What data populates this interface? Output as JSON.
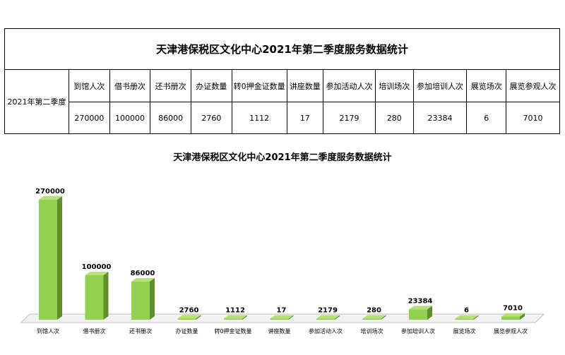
{
  "table": {
    "title": "天津港保税区文化中心2021年第二季度服务数据统计",
    "row_label": "2021年第二季度",
    "headers": [
      "到馆人次",
      "借书册次",
      "还书册次",
      "办证数量",
      "转0押金证数量",
      "讲座数量",
      "参加活动人次",
      "培训场次",
      "参加培训人次",
      "展览场次",
      "展览参观人次"
    ],
    "values": [
      "270000",
      "100000",
      "86000",
      "2760",
      "1112",
      "17",
      "2179",
      "280",
      "23384",
      "6",
      "7010"
    ]
  },
  "chart_data": {
    "type": "bar",
    "title": "天津港保税区文化中心2021年第二季度服务数据统计",
    "categories": [
      "到馆人次",
      "借书册次",
      "还书册次",
      "办证数量",
      "转0押金证数量",
      "讲座数量",
      "参加活动人次",
      "培训场次",
      "参加培训人次",
      "展览场次",
      "展览参观人次"
    ],
    "values": [
      270000,
      100000,
      86000,
      2760,
      1112,
      17,
      2179,
      280,
      23384,
      6,
      7010
    ],
    "data_labels": [
      "270000",
      "100000",
      "86000",
      "2760",
      "1112",
      "17",
      "2179",
      "280",
      "23384",
      "6",
      "7010"
    ],
    "xlabel": "",
    "ylabel": "",
    "ylim": [
      0,
      270000
    ],
    "grid": false,
    "legend": "none",
    "colors": {
      "bar_front": "#92d050",
      "bar_side": "#5f8f2d",
      "bar_top": "#b8e078",
      "floor": "#f2f2f2",
      "floor_edge": "#bfbfbf"
    }
  }
}
